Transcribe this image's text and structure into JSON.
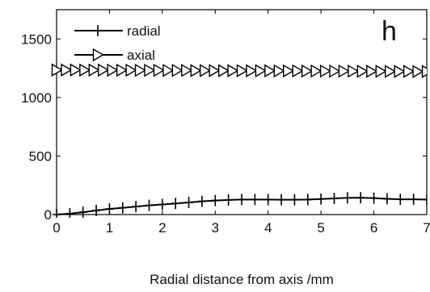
{
  "chart_data": {
    "type": "line",
    "title": "",
    "panel_label": "h",
    "xlabel": "Radial distance from axis /mm",
    "ylabel": "",
    "xlim": [
      0,
      7
    ],
    "ylim": [
      0,
      1750
    ],
    "x_ticks": [
      0,
      1,
      2,
      3,
      4,
      5,
      6,
      7
    ],
    "y_ticks": [
      0,
      500,
      1000,
      1500
    ],
    "grid": false,
    "legend_position": "top-left",
    "line_color": "#000000",
    "series": [
      {
        "name": "radial",
        "marker": "plus",
        "x": [
          0,
          0.25,
          0.5,
          0.75,
          1,
          1.25,
          1.5,
          1.75,
          2,
          2.25,
          2.5,
          2.75,
          3,
          3.25,
          3.5,
          3.75,
          4,
          4.25,
          4.5,
          4.75,
          5,
          5.25,
          5.5,
          5.75,
          6,
          6.25,
          6.5,
          6.75,
          7
        ],
        "y": [
          0,
          8,
          20,
          35,
          48,
          58,
          68,
          78,
          86,
          95,
          103,
          113,
          120,
          125,
          128,
          128,
          128,
          127,
          127,
          128,
          133,
          138,
          143,
          144,
          140,
          134,
          130,
          130,
          128
        ]
      },
      {
        "name": "axial",
        "marker": "triangle-right",
        "x": [
          0,
          0.175,
          0.35,
          0.525,
          0.7,
          0.875,
          1.05,
          1.225,
          1.4,
          1.575,
          1.75,
          1.925,
          2.1,
          2.275,
          2.45,
          2.625,
          2.8,
          2.975,
          3.15,
          3.325,
          3.5,
          3.675,
          3.85,
          4.025,
          4.2,
          4.375,
          4.55,
          4.725,
          4.9,
          5.075,
          5.25,
          5.425,
          5.6,
          5.775,
          5.95,
          6.125,
          6.3,
          6.475,
          6.65,
          6.825,
          7
        ],
        "y": [
          1235,
          1235,
          1235,
          1234,
          1234,
          1234,
          1233,
          1233,
          1233,
          1232,
          1232,
          1232,
          1231,
          1231,
          1231,
          1230,
          1230,
          1230,
          1229,
          1229,
          1229,
          1228,
          1228,
          1228,
          1227,
          1227,
          1227,
          1226,
          1226,
          1226,
          1225,
          1225,
          1225,
          1224,
          1224,
          1224,
          1223,
          1223,
          1223,
          1222,
          1222
        ]
      }
    ]
  }
}
